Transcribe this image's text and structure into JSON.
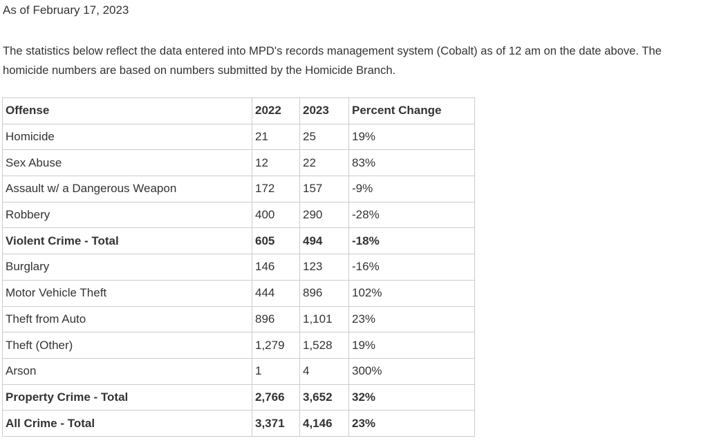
{
  "header": {
    "date": "As of February 17, 2023",
    "paragraph": "The statistics below reflect the data entered into MPD's records management system (Cobalt) as of 12 am on the date above. The homicide numbers are based on numbers submitted by the Homicide Branch."
  },
  "table": {
    "columns": [
      "Offense",
      "2022",
      "2023",
      "Percent Change"
    ],
    "rows": [
      [
        "Homicide",
        "21",
        "25",
        "19%"
      ],
      [
        "Sex Abuse",
        "12",
        "22",
        "83%"
      ],
      [
        "Assault w/ a Dangerous Weapon",
        "172",
        "157",
        "-9%"
      ],
      [
        "Robbery",
        "400",
        "290",
        "-28%"
      ],
      [
        "Violent Crime - Total",
        "605",
        "494",
        "-18%"
      ],
      [
        "Burglary",
        "146",
        "123",
        "-16%"
      ],
      [
        "Motor Vehicle Theft",
        "444",
        "896",
        "102%"
      ],
      [
        "Theft from Auto",
        "896",
        "1,101",
        "23%"
      ],
      [
        "Theft (Other)",
        "1,279",
        "1,528",
        "19%"
      ],
      [
        "Arson",
        "1",
        "4",
        "300%"
      ],
      [
        "Property Crime - Total",
        "2,766",
        "3,652",
        "32%"
      ],
      [
        "All Crime - Total",
        "3,371",
        "4,146",
        "23%"
      ]
    ]
  }
}
